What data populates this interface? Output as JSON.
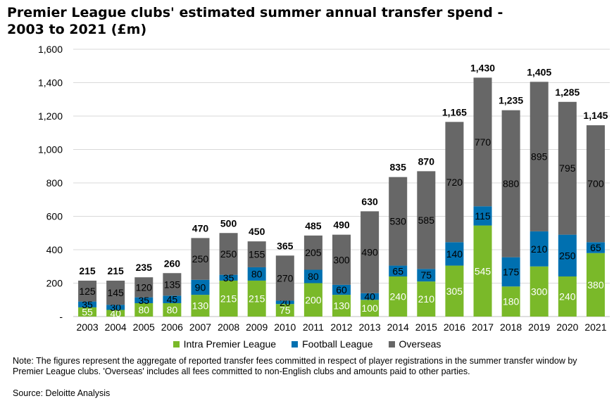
{
  "chart_data": {
    "type": "bar",
    "stacked": true,
    "title": "Premier League clubs' estimated summer annual transfer spend - 2003 to 2021 (£m)",
    "categories": [
      "2003",
      "2004",
      "2005",
      "2006",
      "2007",
      "2008",
      "2009",
      "2010",
      "2011",
      "2012",
      "2013",
      "2014",
      "2015",
      "2016",
      "2017",
      "2018",
      "2019",
      "2020",
      "2021"
    ],
    "series": [
      {
        "name": "Intra Premier League",
        "color": "#7ab929",
        "values": [
          55,
          40,
          80,
          80,
          130,
          215,
          215,
          75,
          200,
          130,
          100,
          240,
          210,
          305,
          545,
          180,
          300,
          240,
          380
        ]
      },
      {
        "name": "Football League",
        "color": "#0070b0",
        "values": [
          35,
          30,
          35,
          45,
          90,
          35,
          80,
          20,
          80,
          60,
          40,
          65,
          75,
          140,
          115,
          175,
          210,
          250,
          65
        ]
      },
      {
        "name": "Overseas",
        "color": "#676767",
        "values": [
          125,
          145,
          120,
          135,
          250,
          250,
          155,
          270,
          205,
          300,
          490,
          530,
          585,
          720,
          770,
          880,
          895,
          795,
          700
        ]
      }
    ],
    "totals": [
      215,
      215,
      235,
      260,
      470,
      500,
      450,
      365,
      485,
      490,
      630,
      835,
      870,
      1165,
      1430,
      1235,
      1405,
      1285,
      1145
    ],
    "ylim": [
      0,
      1600
    ],
    "yticks": [
      "-",
      "200",
      "400",
      "600",
      "800",
      "1,000",
      "1,200",
      "1,400",
      "1,600"
    ],
    "grid": true,
    "legend_position": "bottom"
  },
  "note": "Note: The figures represent the aggregate of reported transfer fees committed in respect of player registrations in the summer transfer window by Premier League clubs. 'Overseas' includes all fees committed to non-English clubs and amounts paid to other parties.",
  "source": "Source: Deloitte Analysis"
}
